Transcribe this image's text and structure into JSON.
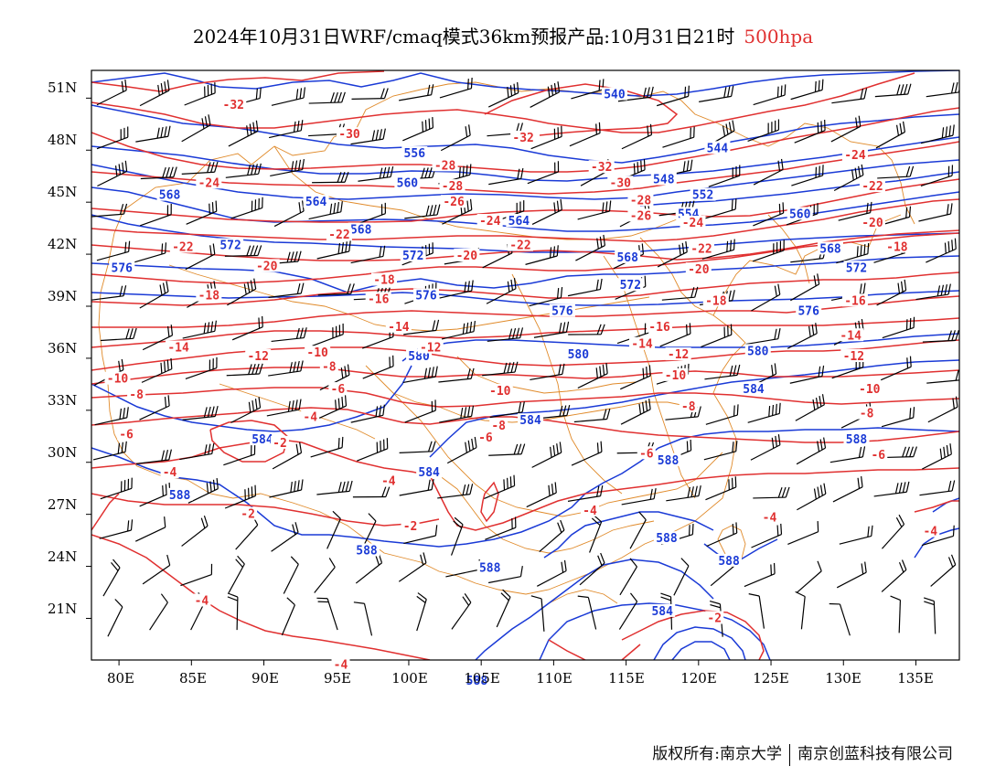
{
  "title": {
    "main": "2024年10月31日WRF/cmaq模式36km预报产品:10月31日21时",
    "level": "500hpa"
  },
  "axes": {
    "lat_labels": [
      "51N",
      "48N",
      "45N",
      "42N",
      "39N",
      "36N",
      "33N",
      "30N",
      "27N",
      "24N",
      "21N"
    ],
    "lon_labels": [
      "80E",
      "85E",
      "90E",
      "95E",
      "100E",
      "105E",
      "110E",
      "115E",
      "120E",
      "125E",
      "130E",
      "135E"
    ]
  },
  "colors": {
    "height_contours": "#1a3ad6",
    "temperature_contours": "#e03030",
    "borders": "#e08a2a",
    "wind_barbs": "#000000",
    "level_label": "#e03030"
  },
  "footer": {
    "left": "版权所有:南京大学",
    "right": "南京创蓝科技有限公司"
  },
  "map_data": {
    "variables": [
      "geopotential height (dagpm)",
      "temperature (°C)",
      "wind barbs"
    ],
    "height_contours": [
      {
        "value": "540",
        "y": 51.2
      },
      {
        "value": "544",
        "y": 48.1
      },
      {
        "value": "548",
        "y": 46.3
      },
      {
        "value": "552",
        "y": 45.4
      },
      {
        "value": "556",
        "y": 48.1
      },
      {
        "value": "560",
        "y": 46.3
      },
      {
        "value": "564",
        "y": 45.1
      },
      {
        "value": "568",
        "y": 44.3
      },
      {
        "value": "572",
        "y": 42.7
      },
      {
        "value": "576",
        "y": 40.3
      },
      {
        "value": "580",
        "y": 37.1
      },
      {
        "value": "584",
        "y": 32.5
      },
      {
        "value": "588",
        "y": 28.4
      }
    ],
    "temperature_contours": [
      {
        "value": "-32",
        "y": 50.7
      },
      {
        "value": "-30",
        "y": 48.6
      },
      {
        "value": "-28",
        "y": 46.1
      },
      {
        "value": "-26",
        "y": 45.1
      },
      {
        "value": "-24",
        "y": 44.5
      },
      {
        "value": "-22",
        "y": 43.0
      },
      {
        "value": "-20",
        "y": 41.3
      },
      {
        "value": "-18",
        "y": 39.4
      },
      {
        "value": "-16",
        "y": 38.8
      },
      {
        "value": "-14",
        "y": 37.4
      },
      {
        "value": "-12",
        "y": 36.2
      },
      {
        "value": "-10",
        "y": 34.4
      },
      {
        "value": "-8",
        "y": 33.5
      },
      {
        "value": "-6",
        "y": 31.6
      },
      {
        "value": "-4",
        "y": 29.4
      },
      {
        "value": "-2",
        "y": 27.3
      }
    ],
    "height_labels": [
      {
        "text": "540",
        "lon": 114.2,
        "lat": 51.2
      },
      {
        "text": "544",
        "lon": 121.3,
        "lat": 48.1
      },
      {
        "text": "548",
        "lon": 117.6,
        "lat": 46.3
      },
      {
        "text": "552",
        "lon": 120.3,
        "lat": 45.4
      },
      {
        "text": "554",
        "lon": 119.3,
        "lat": 44.3
      },
      {
        "text": "556",
        "lon": 100.4,
        "lat": 47.8
      },
      {
        "text": "560",
        "lon": 99.9,
        "lat": 46.1
      },
      {
        "text": "560",
        "lon": 127.0,
        "lat": 44.3
      },
      {
        "text": "564",
        "lon": 93.6,
        "lat": 45.0
      },
      {
        "text": "564",
        "lon": 107.6,
        "lat": 43.9
      },
      {
        "text": "568",
        "lon": 83.5,
        "lat": 45.4
      },
      {
        "text": "568",
        "lon": 96.7,
        "lat": 43.4
      },
      {
        "text": "568",
        "lon": 115.1,
        "lat": 41.8
      },
      {
        "text": "568",
        "lon": 129.1,
        "lat": 42.3
      },
      {
        "text": "572",
        "lon": 87.7,
        "lat": 42.5
      },
      {
        "text": "572",
        "lon": 100.3,
        "lat": 41.9
      },
      {
        "text": "572",
        "lon": 115.3,
        "lat": 40.2
      },
      {
        "text": "572",
        "lon": 130.9,
        "lat": 41.2
      },
      {
        "text": "576",
        "lon": 80.2,
        "lat": 41.2
      },
      {
        "text": "576",
        "lon": 101.2,
        "lat": 39.6
      },
      {
        "text": "576",
        "lon": 110.6,
        "lat": 38.7
      },
      {
        "text": "576",
        "lon": 127.6,
        "lat": 38.7
      },
      {
        "text": "580",
        "lon": 100.7,
        "lat": 36.1
      },
      {
        "text": "580",
        "lon": 111.7,
        "lat": 36.2
      },
      {
        "text": "580",
        "lon": 124.1,
        "lat": 36.4
      },
      {
        "text": "584",
        "lon": 89.9,
        "lat": 31.3
      },
      {
        "text": "584",
        "lon": 108.4,
        "lat": 32.4
      },
      {
        "text": "584",
        "lon": 101.4,
        "lat": 29.4
      },
      {
        "text": "584",
        "lon": 123.8,
        "lat": 34.2
      },
      {
        "text": "584",
        "lon": 117.5,
        "lat": 21.4
      },
      {
        "text": "588",
        "lon": 84.2,
        "lat": 28.1
      },
      {
        "text": "588",
        "lon": 97.1,
        "lat": 24.9
      },
      {
        "text": "588",
        "lon": 105.6,
        "lat": 23.9
      },
      {
        "text": "588",
        "lon": 117.9,
        "lat": 30.1
      },
      {
        "text": "588",
        "lon": 117.8,
        "lat": 25.6
      },
      {
        "text": "588",
        "lon": 122.1,
        "lat": 24.3
      },
      {
        "text": "588",
        "lon": 130.9,
        "lat": 31.3
      },
      {
        "text": "588",
        "lon": 104.7,
        "lat": 17.4
      }
    ],
    "temperature_labels": [
      {
        "text": "-32",
        "lon": 87.9,
        "lat": 50.6
      },
      {
        "text": "-32",
        "lon": 107.9,
        "lat": 48.7
      },
      {
        "text": "-32",
        "lon": 113.3,
        "lat": 47.0
      },
      {
        "text": "-30",
        "lon": 95.9,
        "lat": 48.9
      },
      {
        "text": "-30",
        "lon": 114.6,
        "lat": 46.1
      },
      {
        "text": "-28",
        "lon": 102.5,
        "lat": 47.1
      },
      {
        "text": "-28",
        "lon": 103.0,
        "lat": 45.9
      },
      {
        "text": "-28",
        "lon": 116.0,
        "lat": 45.1
      },
      {
        "text": "-26",
        "lon": 103.1,
        "lat": 45.0
      },
      {
        "text": "-26",
        "lon": 116.0,
        "lat": 44.2
      },
      {
        "text": "-24",
        "lon": 86.2,
        "lat": 46.1
      },
      {
        "text": "-24",
        "lon": 105.6,
        "lat": 43.9
      },
      {
        "text": "-24",
        "lon": 119.6,
        "lat": 43.8
      },
      {
        "text": "-24",
        "lon": 130.8,
        "lat": 47.7
      },
      {
        "text": "-22",
        "lon": 84.4,
        "lat": 42.4
      },
      {
        "text": "-22",
        "lon": 95.2,
        "lat": 43.1
      },
      {
        "text": "-22",
        "lon": 107.7,
        "lat": 42.5
      },
      {
        "text": "-22",
        "lon": 120.2,
        "lat": 42.3
      },
      {
        "text": "-22",
        "lon": 132.0,
        "lat": 45.9
      },
      {
        "text": "-20",
        "lon": 90.2,
        "lat": 41.3
      },
      {
        "text": "-20",
        "lon": 104.0,
        "lat": 41.9
      },
      {
        "text": "-20",
        "lon": 120.0,
        "lat": 41.1
      },
      {
        "text": "-20",
        "lon": 132.0,
        "lat": 43.8
      },
      {
        "text": "-18",
        "lon": 86.2,
        "lat": 39.6
      },
      {
        "text": "-18",
        "lon": 98.3,
        "lat": 40.5
      },
      {
        "text": "-18",
        "lon": 121.2,
        "lat": 39.3
      },
      {
        "text": "-18",
        "lon": 133.7,
        "lat": 42.4
      },
      {
        "text": "-16",
        "lon": 97.9,
        "lat": 39.4
      },
      {
        "text": "-16",
        "lon": 117.3,
        "lat": 37.8
      },
      {
        "text": "-16",
        "lon": 130.8,
        "lat": 39.3
      },
      {
        "text": "-14",
        "lon": 84.1,
        "lat": 36.6
      },
      {
        "text": "-14",
        "lon": 99.3,
        "lat": 37.8
      },
      {
        "text": "-14",
        "lon": 116.1,
        "lat": 36.8
      },
      {
        "text": "-14",
        "lon": 130.5,
        "lat": 37.3
      },
      {
        "text": "-12",
        "lon": 89.6,
        "lat": 36.1
      },
      {
        "text": "-12",
        "lon": 101.5,
        "lat": 36.6
      },
      {
        "text": "-12",
        "lon": 118.6,
        "lat": 36.2
      },
      {
        "text": "-12",
        "lon": 130.7,
        "lat": 36.1
      },
      {
        "text": "-10",
        "lon": 79.9,
        "lat": 34.8
      },
      {
        "text": "-10",
        "lon": 93.7,
        "lat": 36.3
      },
      {
        "text": "-10",
        "lon": 106.3,
        "lat": 34.1
      },
      {
        "text": "-10",
        "lon": 118.4,
        "lat": 35.0
      },
      {
        "text": "-10",
        "lon": 131.8,
        "lat": 34.2
      },
      {
        "text": "-8",
        "lon": 81.2,
        "lat": 33.9
      },
      {
        "text": "-8",
        "lon": 94.5,
        "lat": 35.5
      },
      {
        "text": "-8",
        "lon": 106.2,
        "lat": 32.1
      },
      {
        "text": "-8",
        "lon": 119.3,
        "lat": 33.2
      },
      {
        "text": "-8",
        "lon": 131.6,
        "lat": 32.8
      },
      {
        "text": "-6",
        "lon": 80.5,
        "lat": 31.6
      },
      {
        "text": "-6",
        "lon": 95.1,
        "lat": 34.2
      },
      {
        "text": "-6",
        "lon": 105.3,
        "lat": 31.4
      },
      {
        "text": "-6",
        "lon": 116.4,
        "lat": 30.5
      },
      {
        "text": "-6",
        "lon": 132.4,
        "lat": 30.4
      },
      {
        "text": "-4",
        "lon": 83.5,
        "lat": 29.4
      },
      {
        "text": "-4",
        "lon": 93.2,
        "lat": 32.6
      },
      {
        "text": "-4",
        "lon": 98.6,
        "lat": 28.9
      },
      {
        "text": "-4",
        "lon": 112.5,
        "lat": 27.2
      },
      {
        "text": "-4",
        "lon": 124.9,
        "lat": 26.8
      },
      {
        "text": "-4",
        "lon": 136.0,
        "lat": 26.0
      },
      {
        "text": "-4",
        "lon": 85.7,
        "lat": 22.0
      },
      {
        "text": "-4",
        "lon": 95.3,
        "lat": 18.3
      },
      {
        "text": "-2",
        "lon": 91.1,
        "lat": 31.1
      },
      {
        "text": "-2",
        "lon": 88.9,
        "lat": 27.0
      },
      {
        "text": "-2",
        "lon": 100.1,
        "lat": 26.3
      },
      {
        "text": "-2",
        "lon": 121.1,
        "lat": 21.0
      }
    ]
  }
}
